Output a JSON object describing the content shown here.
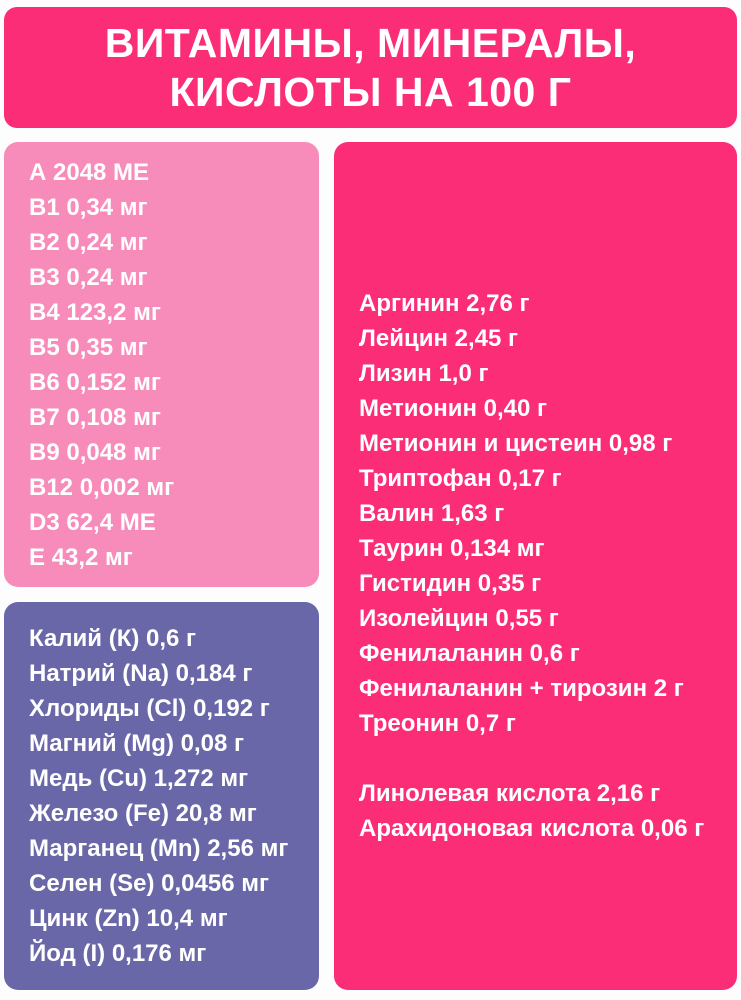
{
  "colors": {
    "background": "#fdfdfd",
    "deep_pink": "#fa2d76",
    "light_pink": "#f78cba",
    "purple": "#6a67a8",
    "text": "#ffffff"
  },
  "header": {
    "title_line1": "ВИТАМИНЫ, МИНЕРАЛЫ,",
    "title_line2": "КИСЛОТЫ НА 100 Г"
  },
  "vitamins": {
    "items": [
      "А 2048 МЕ",
      "В1 0,34 мг",
      "В2 0,24 мг",
      "В3 0,24 мг",
      "В4 123,2 мг",
      "В5 0,35 мг",
      "В6 0,152 мг",
      "В7 0,108 мг",
      "В9 0,048 мг",
      "В12 0,002 мг",
      "D3 62,4 МЕ",
      "Е 43,2 мг"
    ]
  },
  "minerals": {
    "items": [
      "Калий (К) 0,6 г",
      "Натрий (Na) 0,184 г",
      "Хлориды (Cl) 0,192 г",
      "Магний (Mg) 0,08 г",
      "Медь (Cu) 1,272 мг",
      "Железо (Fe) 20,8 мг",
      "Марганец (Mn) 2,56 мг",
      "Селен (Se) 0,0456 мг",
      "Цинк (Zn) 10,4 мг",
      "Йод (I) 0,176 мг"
    ]
  },
  "amino_acids": {
    "items": [
      "Аргинин 2,76 г",
      "Лейцин 2,45 г",
      "Лизин 1,0 г",
      "Метионин 0,40 г",
      "Метионин и цистеин 0,98 г",
      "Триптофан 0,17 г",
      "Валин 1,63 г",
      "Таурин 0,134 мг",
      "Гистидин 0,35 г",
      "Изолейцин 0,55 г",
      "Фенилаланин 0,6 г",
      "Фенилаланин + тирозин 2 г",
      "Треонин 0,7 г"
    ]
  },
  "fatty_acids": {
    "items": [
      "Линолевая кислота 2,16 г",
      "Арахидоновая кислота 0,06 г"
    ]
  }
}
